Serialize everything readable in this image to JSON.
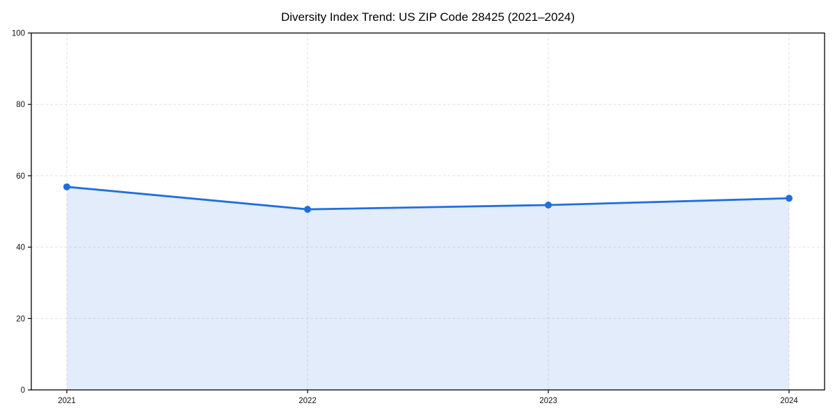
{
  "chart_data": {
    "type": "area",
    "title": "Diversity Index Trend: US ZIP Code 28425 (2021–2024)",
    "x": [
      2021,
      2022,
      2023,
      2024
    ],
    "xticklabels": [
      "2021",
      "2022",
      "2023",
      "2024"
    ],
    "series": [
      {
        "name": "Diversity Index",
        "values": [
          56.9,
          50.6,
          51.8,
          53.7
        ]
      }
    ],
    "xlabel": "",
    "ylabel": "",
    "ylim": [
      0,
      100
    ],
    "yticks": [
      0,
      20,
      40,
      60,
      80,
      100
    ],
    "grid": true,
    "grid_style": "dashed",
    "legend": "none",
    "colors": {
      "line": "#1f6ede",
      "marker": "#1f6ede",
      "fill": "#1f6ede",
      "fill_opacity": 0.13,
      "grid": "#e2e2e2",
      "axis_frame": "#000000",
      "tick_text": "#111111",
      "background": "#ffffff"
    }
  }
}
